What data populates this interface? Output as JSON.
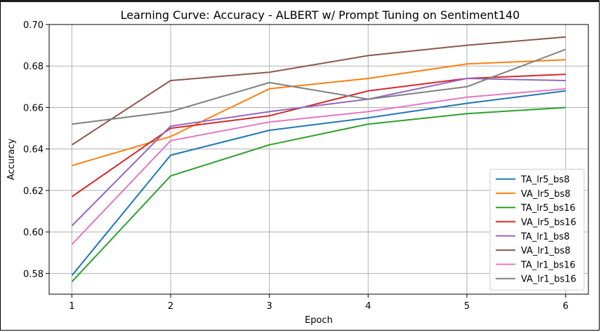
{
  "chart_data": {
    "type": "line",
    "title": "Learning Curve: Accuracy - ALBERT w/ Prompt Tuning on Sentiment140",
    "xlabel": "Epoch",
    "ylabel": "Accuracy",
    "x": [
      1,
      2,
      3,
      4,
      5,
      6
    ],
    "x_ticks": [
      "1",
      "2",
      "3",
      "4",
      "5",
      "6"
    ],
    "xlim": [
      0.77,
      6.23
    ],
    "ylim": [
      0.57,
      0.7
    ],
    "y_ticks": [
      0.58,
      0.6,
      0.62,
      0.64,
      0.66,
      0.68,
      0.7
    ],
    "y_tick_labels": [
      "0.58",
      "0.60",
      "0.62",
      "0.64",
      "0.66",
      "0.68",
      "0.70"
    ],
    "grid": true,
    "legend_position": "lower-right",
    "series": [
      {
        "name": "TA_lr5_bs8",
        "color": "#1f77b4",
        "values": [
          0.579,
          0.637,
          0.649,
          0.655,
          0.662,
          0.668
        ]
      },
      {
        "name": "VA_lr5_bs8",
        "color": "#ff7f0e",
        "values": [
          0.632,
          0.646,
          0.669,
          0.674,
          0.681,
          0.683
        ]
      },
      {
        "name": "TA_lr5_bs16",
        "color": "#2ca02c",
        "values": [
          0.576,
          0.627,
          0.642,
          0.652,
          0.657,
          0.66
        ]
      },
      {
        "name": "VA_lr5_bs16",
        "color": "#d62728",
        "values": [
          0.617,
          0.65,
          0.656,
          0.668,
          0.674,
          0.676
        ]
      },
      {
        "name": "TA_lr1_bs8",
        "color": "#9467bd",
        "values": [
          0.603,
          0.651,
          0.658,
          0.664,
          0.674,
          0.673
        ]
      },
      {
        "name": "VA_lr1_bs8",
        "color": "#8c564b",
        "values": [
          0.642,
          0.673,
          0.677,
          0.685,
          0.69,
          0.694
        ]
      },
      {
        "name": "TA_lr1_bs16",
        "color": "#e377c2",
        "values": [
          0.594,
          0.644,
          0.653,
          0.658,
          0.665,
          0.669
        ]
      },
      {
        "name": "VA_lr1_bs16",
        "color": "#7f7f7f",
        "values": [
          0.652,
          0.658,
          0.672,
          0.664,
          0.67,
          0.688
        ]
      }
    ]
  }
}
